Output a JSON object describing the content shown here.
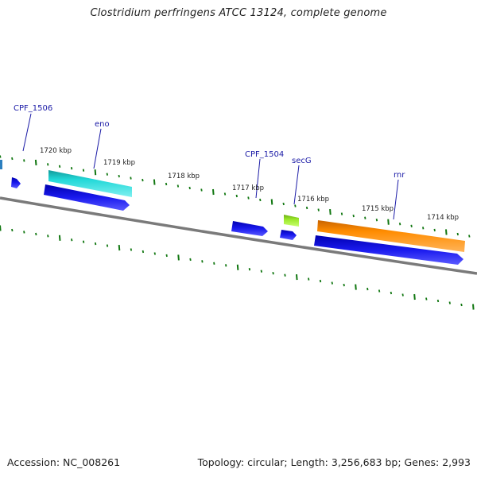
{
  "title": "Clostridium perfringens ATCC 13124, complete genome",
  "accession_text": "Accession: NC_008261",
  "summary_text": "Topology: circular; Length: 3,256,683 bp; Genes: 2,993",
  "tick_labels": [
    "1720 kbp",
    "1719 kbp",
    "1718 kbp",
    "1717 kbp",
    "1716 kbp",
    "1715 kbp",
    "1714 kbp"
  ],
  "gene_labels": [
    "CPF_1506",
    "eno",
    "CPF_1504",
    "secG",
    "rnr"
  ],
  "colors": {
    "backbone": "#808080",
    "cds": "#1a1aee",
    "eno": "#22d0d0",
    "secG": "#9be82a",
    "rnr": "#ff8c00",
    "ticks": "#117711",
    "label": "#1a1aa6"
  }
}
